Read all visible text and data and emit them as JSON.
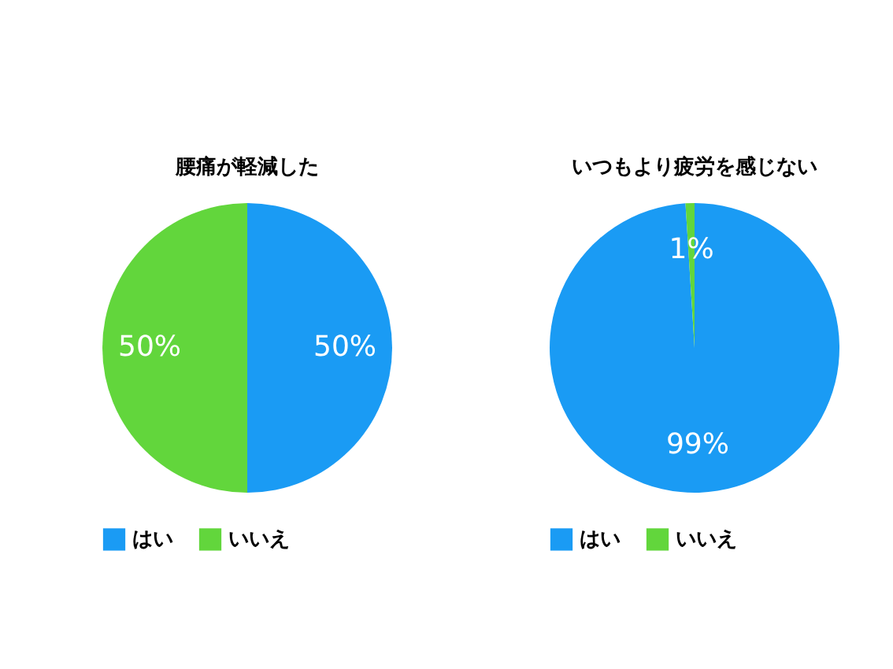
{
  "chart_data": [
    {
      "type": "pie",
      "title": "腰痛が軽減した",
      "categories": [
        "はい",
        "いいえ"
      ],
      "values": [
        50,
        50
      ],
      "colors": [
        "#1a9bf4",
        "#62d63c"
      ],
      "value_labels": [
        "50%",
        "50%"
      ],
      "legend": "bottom"
    },
    {
      "type": "pie",
      "title": "いつもより疲労を感じない",
      "categories": [
        "はい",
        "いいえ"
      ],
      "values": [
        99,
        1
      ],
      "colors": [
        "#1a9bf4",
        "#62d63c"
      ],
      "value_labels": [
        "99%",
        "1%"
      ],
      "legend": "bottom"
    }
  ]
}
